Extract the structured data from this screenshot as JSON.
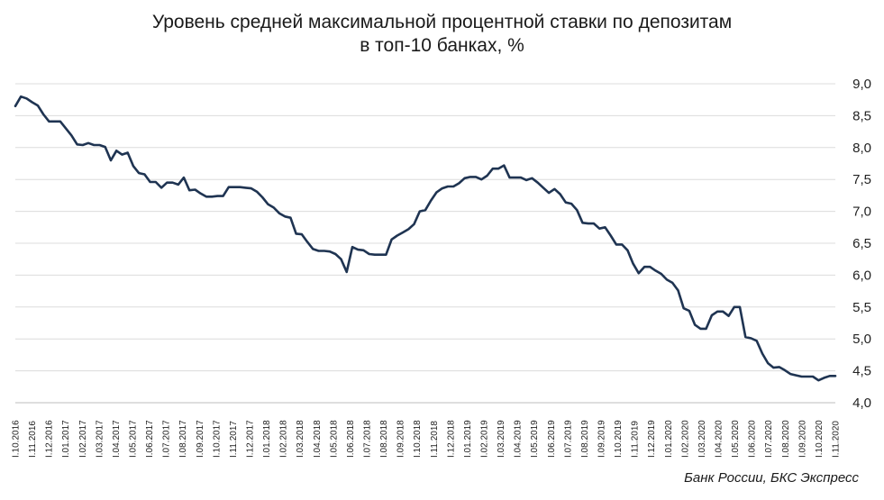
{
  "chart_data": {
    "type": "line",
    "title_line1": "Уровень средней максимальной процентной ставки по депозитам",
    "title_line2": "в топ-10 банках, %",
    "source": "Банк России, БКС Экспресс",
    "ylim": [
      4.0,
      9.0
    ],
    "y_ticks": [
      "4,0",
      "4,5",
      "5,0",
      "5,5",
      "6,0",
      "6,5",
      "7,0",
      "7,5",
      "8,0",
      "8,5",
      "9,0"
    ],
    "y_axis_position": "right",
    "grid": "horizontal",
    "line_color": "#1f3452",
    "x_ticks": [
      "I.10.2016",
      "I.11.2016",
      "I.12.2016",
      "I.01.2017",
      "I.02.2017",
      "I.03.2017",
      "I.04.2017",
      "I.05.2017",
      "I.06.2017",
      "I.07.2017",
      "I.08.2017",
      "I.09.2017",
      "I.10.2017",
      "I.11.2017",
      "I.12.2017",
      "I.01.2018",
      "I.02.2018",
      "I.03.2018",
      "I.04.2018",
      "I.05.2018",
      "I.06.2018",
      "I.07.2018",
      "I.08.2018",
      "I.09.2018",
      "I.10.2018",
      "I.11.2018",
      "I.12.2018",
      "I.01.2019",
      "I.02.2019",
      "I.03.2019",
      "I.04.2019",
      "I.05.2019",
      "I.06.2019",
      "I.07.2019",
      "I.08.2019",
      "I.09.2019",
      "I.10.2019",
      "I.11.2019",
      "I.12.2019",
      "I.01.2020",
      "I.02.2020",
      "I.03.2020",
      "I.04.2020",
      "I.05.2020",
      "I.06.2020",
      "I.07.2020",
      "I.08.2020",
      "I.09.2020",
      "I.10.2020",
      "I.11.2020"
    ],
    "series": [
      {
        "values": [
          8.65,
          8.8,
          8.77,
          8.71,
          8.66,
          8.52,
          8.41,
          8.41,
          8.41,
          8.3,
          8.19,
          8.05,
          8.04,
          8.07,
          8.04,
          8.04,
          8.01,
          7.8,
          7.95,
          7.89,
          7.92,
          7.71,
          7.6,
          7.58,
          7.46,
          7.46,
          7.37,
          7.45,
          7.45,
          7.42,
          7.53,
          7.33,
          7.34,
          7.28,
          7.23,
          7.23,
          7.24,
          7.24,
          7.38,
          7.38,
          7.38,
          7.37,
          7.36,
          7.31,
          7.22,
          7.11,
          7.06,
          6.97,
          6.92,
          6.9,
          6.65,
          6.64,
          6.52,
          6.41,
          6.38,
          6.38,
          6.37,
          6.33,
          6.25,
          6.05,
          6.44,
          6.4,
          6.39,
          6.33,
          6.32,
          6.32,
          6.32,
          6.56,
          6.62,
          6.67,
          6.72,
          6.8,
          7.0,
          7.02,
          7.17,
          7.3,
          7.36,
          7.39,
          7.39,
          7.44,
          7.52,
          7.54,
          7.54,
          7.5,
          7.56,
          7.67,
          7.67,
          7.72,
          7.53,
          7.53,
          7.53,
          7.49,
          7.52,
          7.45,
          7.37,
          7.29,
          7.35,
          7.27,
          7.14,
          7.12,
          7.02,
          6.82,
          6.81,
          6.81,
          6.73,
          6.75,
          6.62,
          6.48,
          6.48,
          6.39,
          6.18,
          6.03,
          6.13,
          6.13,
          6.07,
          6.02,
          5.93,
          5.88,
          5.76,
          5.48,
          5.44,
          5.22,
          5.16,
          5.16,
          5.37,
          5.43,
          5.43,
          5.36,
          5.5,
          5.5,
          5.03,
          5.01,
          4.97,
          4.77,
          4.62,
          4.55,
          4.56,
          4.51,
          4.45,
          4.43,
          4.41,
          4.41,
          4.41,
          4.35,
          4.39,
          4.42,
          4.42
        ]
      }
    ]
  }
}
